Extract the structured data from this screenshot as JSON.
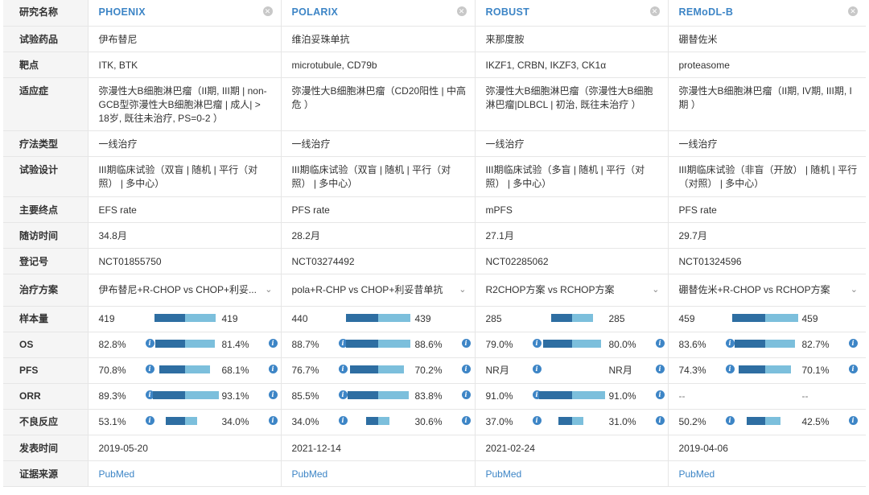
{
  "labels": {
    "name": "研究名称",
    "drug": "试验药品",
    "target": "靶点",
    "indication": "适应症",
    "therapy": "疗法类型",
    "design": "试验设计",
    "endpoint": "主要终点",
    "followup": "随访时间",
    "reg": "登记号",
    "regimen": "治疗方案",
    "sample": "样本量",
    "os": "OS",
    "pfs": "PFS",
    "orr": "ORR",
    "ae": "不良反应",
    "pubdate": "发表时间",
    "source": "证据来源"
  },
  "colors": {
    "bar_a": "#2e6ea2",
    "bar_b": "#7cbfdc",
    "accent": "#3d85c6"
  },
  "studies": [
    {
      "name": "PHOENIX",
      "drug": "伊布替尼",
      "target": "ITK, BTK",
      "indication": "弥漫性大B细胞淋巴瘤（II期, III期 | non-GCB型弥漫性大B细胞淋巴瘤 | 成人| > 18岁, 既往未治疗, PS=0-2 ）",
      "therapy": "一线治疗",
      "design": "III期临床试验（双盲 | 随机 | 平行（对照） | 多中心）",
      "endpoint": "EFS rate",
      "followup": "34.8月",
      "reg": "NCT01855750",
      "regimen": "伊布替尼+R-CHOP vs CHOP+利妥...",
      "sample": {
        "a": "419",
        "b": "419",
        "na": 419,
        "nb": 419
      },
      "os": {
        "a": "82.8%",
        "b": "81.4%",
        "na": 82.8,
        "nb": 81.4
      },
      "pfs": {
        "a": "70.8%",
        "b": "68.1%",
        "na": 70.8,
        "nb": 68.1
      },
      "orr": {
        "a": "89.3%",
        "b": "93.1%",
        "na": 89.3,
        "nb": 93.1
      },
      "ae": {
        "a": "53.1%",
        "b": "34.0%",
        "na": 53.1,
        "nb": 34.0
      },
      "pubdate": "2019-05-20",
      "source": "PubMed"
    },
    {
      "name": "POLARIX",
      "drug": "维泊妥珠单抗",
      "target": "microtubule, CD79b",
      "indication": "弥漫性大B细胞淋巴瘤（CD20阳性 | 中高危 ）",
      "therapy": "一线治疗",
      "design": "III期临床试验（双盲 | 随机 | 平行（对照） | 多中心）",
      "endpoint": "PFS rate",
      "followup": "28.2月",
      "reg": "NCT03274492",
      "regimen": "pola+R-CHP vs CHOP+利妥昔单抗",
      "sample": {
        "a": "440",
        "b": "439",
        "na": 440,
        "nb": 439
      },
      "os": {
        "a": "88.7%",
        "b": "88.6%",
        "na": 88.7,
        "nb": 88.6
      },
      "pfs": {
        "a": "76.7%",
        "b": "70.2%",
        "na": 76.7,
        "nb": 70.2
      },
      "orr": {
        "a": "85.5%",
        "b": "83.8%",
        "na": 85.5,
        "nb": 83.8
      },
      "ae": {
        "a": "34.0%",
        "b": "30.6%",
        "na": 34.0,
        "nb": 30.6
      },
      "pubdate": "2021-12-14",
      "source": "PubMed"
    },
    {
      "name": "ROBUST",
      "drug": "来那度胺",
      "target": "IKZF1, CRBN, IKZF3, CK1α",
      "indication": "弥漫性大B细胞淋巴瘤（弥漫性大B细胞淋巴瘤|DLBCL | 初治, 既往未治疗 ）",
      "therapy": "一线治疗",
      "design": "III期临床试验（多盲 | 随机 | 平行（对照） | 多中心）",
      "endpoint": "mPFS",
      "followup": "27.1月",
      "reg": "NCT02285062",
      "regimen": "R2CHOP方案 vs RCHOP方案",
      "sample": {
        "a": "285",
        "b": "285",
        "na": 285,
        "nb": 285
      },
      "os": {
        "a": "79.0%",
        "b": "80.0%",
        "na": 79.0,
        "nb": 80.0
      },
      "pfs": {
        "a": "NR月",
        "b": "NR月"
      },
      "orr": {
        "a": "91.0%",
        "b": "91.0%",
        "na": 91.0,
        "nb": 91.0
      },
      "ae": {
        "a": "37.0%",
        "b": "31.0%",
        "na": 37.0,
        "nb": 31.0
      },
      "pubdate": "2021-02-24",
      "source": "PubMed"
    },
    {
      "name": "REMoDL-B",
      "drug": "硼替佐米",
      "target": "proteasome",
      "indication": "弥漫性大B细胞淋巴瘤（II期, IV期, III期, I期 ）",
      "therapy": "一线治疗",
      "design": "III期临床试验（非盲（开放） | 随机 | 平行（对照） | 多中心）",
      "endpoint": "PFS rate",
      "followup": "29.7月",
      "reg": "NCT01324596",
      "regimen": "硼替佐米+R-CHOP vs RCHOP方案",
      "sample": {
        "a": "459",
        "b": "459",
        "na": 459,
        "nb": 459
      },
      "os": {
        "a": "83.6%",
        "b": "82.7%",
        "na": 83.6,
        "nb": 82.7
      },
      "pfs": {
        "a": "74.3%",
        "b": "70.1%",
        "na": 74.3,
        "nb": 70.1
      },
      "orr": {
        "a": "--",
        "b": "--"
      },
      "ae": {
        "a": "50.2%",
        "b": "42.5%",
        "na": 50.2,
        "nb": 42.5
      },
      "pubdate": "2019-04-06",
      "source": "PubMed"
    }
  ]
}
